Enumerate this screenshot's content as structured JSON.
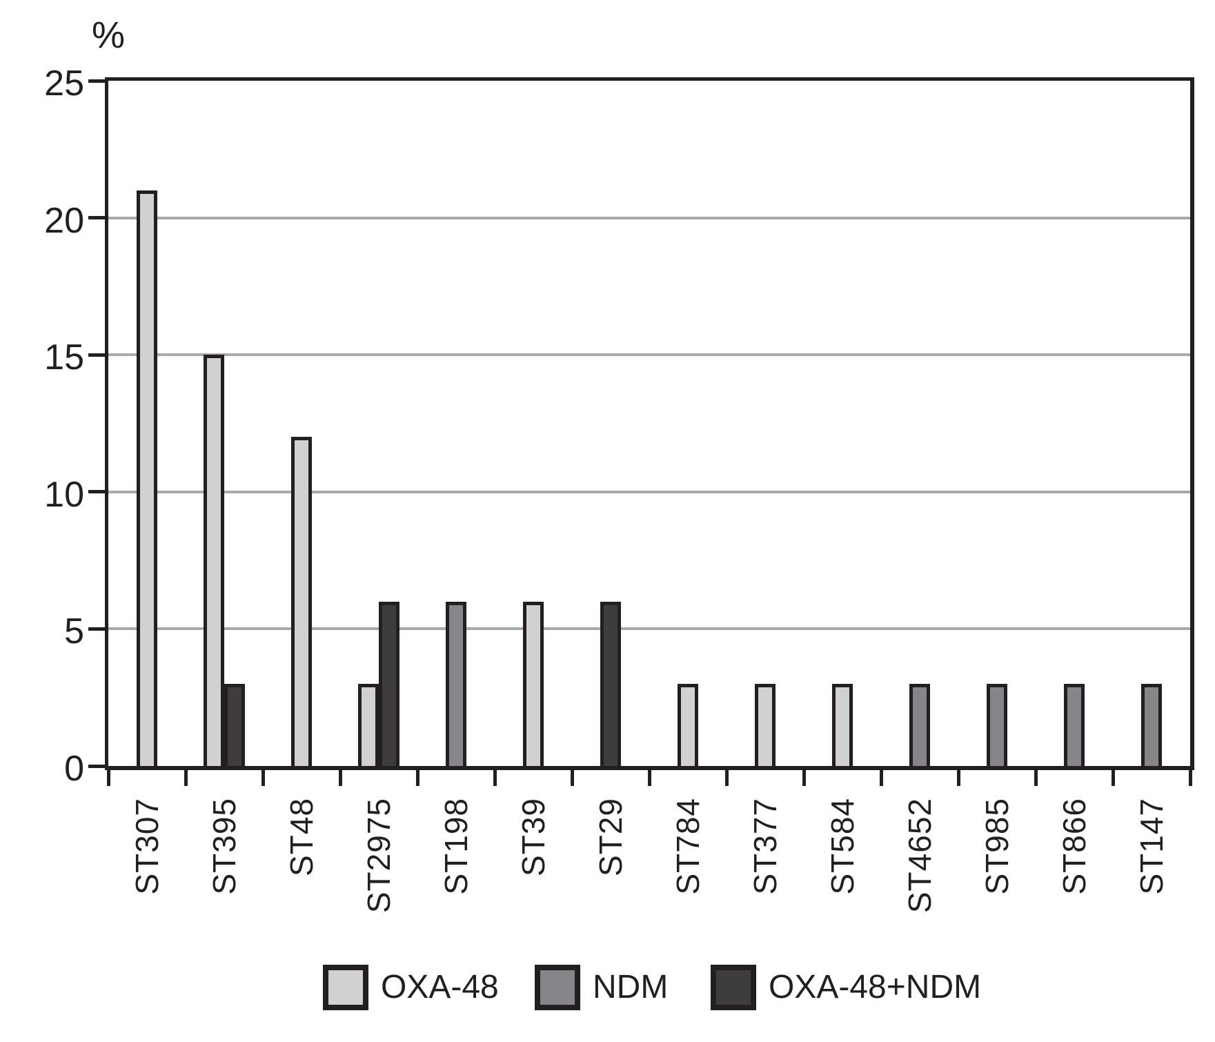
{
  "figure": {
    "background": "#ffffff",
    "axis_color": "#231f20",
    "grid_color": "#a9a9ad"
  },
  "chart_data": {
    "type": "bar",
    "title": "",
    "ylabel": "%",
    "xlabel": "",
    "ylim": [
      0,
      25
    ],
    "yticks": [
      0,
      5,
      10,
      15,
      20,
      25
    ],
    "gridlines": [
      5,
      10,
      15,
      20
    ],
    "grid": true,
    "legend_position": "bottom",
    "categories": [
      "ST307",
      "ST395",
      "ST48",
      "ST2975",
      "ST198",
      "ST39",
      "ST29",
      "ST784",
      "ST377",
      "ST584",
      "ST4652",
      "ST985",
      "ST866",
      "ST147"
    ],
    "series": [
      {
        "name": "OXA-48",
        "color": "#d1d1d3",
        "values": [
          21,
          15,
          12,
          3,
          0,
          6,
          0,
          3,
          3,
          3,
          0,
          0,
          0,
          0
        ]
      },
      {
        "name": "NDM",
        "color": "#85858a",
        "values": [
          0,
          0,
          0,
          0,
          6,
          0,
          0,
          0,
          0,
          0,
          3,
          3,
          3,
          3
        ]
      },
      {
        "name": "OXA-48+NDM",
        "color": "#3e3c3e",
        "values": [
          0,
          3,
          0,
          6,
          0,
          0,
          6,
          0,
          0,
          0,
          0,
          0,
          0,
          0
        ]
      }
    ]
  }
}
